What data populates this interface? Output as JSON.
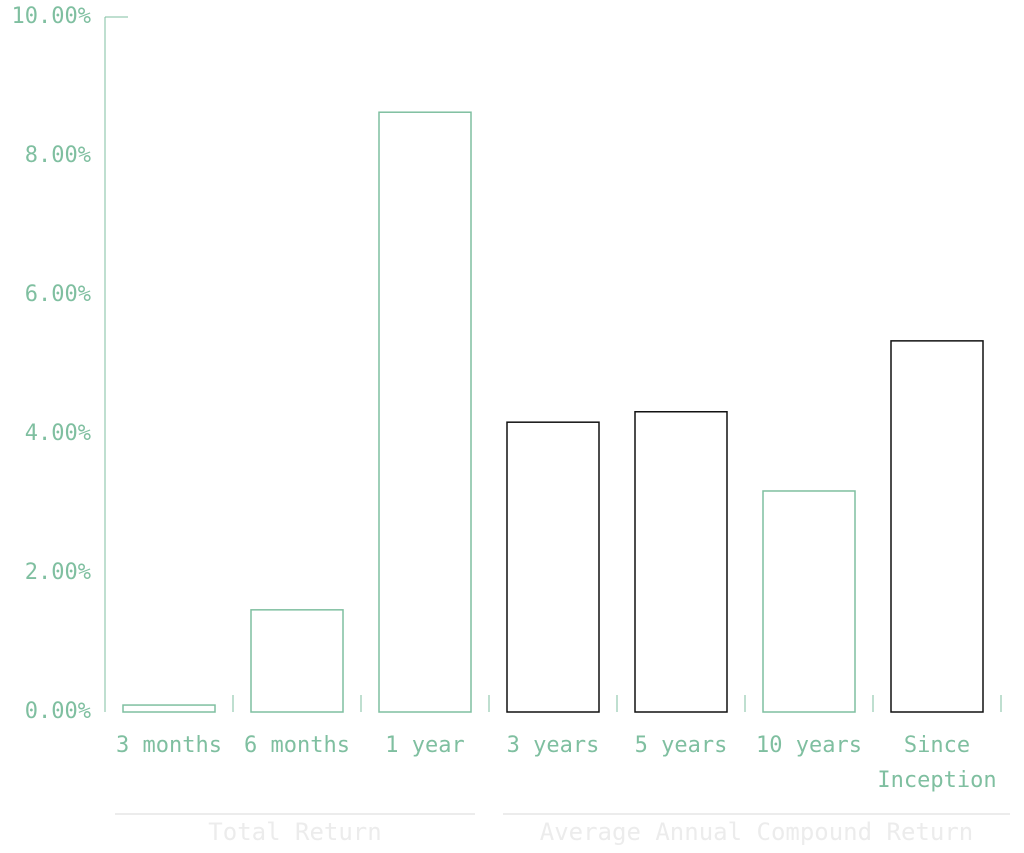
{
  "chart_data": {
    "type": "bar",
    "categories": [
      "3 months",
      "6 months",
      "1 year",
      "3 years",
      "5 years",
      "10 years",
      "Since Inception"
    ],
    "values": [
      0.1,
      1.47,
      8.63,
      4.17,
      4.32,
      3.18,
      5.34
    ],
    "colors": [
      "#7fbfa0",
      "#7fbfa0",
      "#7fbfa0",
      "#111111",
      "#111111",
      "#7fbfa0",
      "#111111"
    ],
    "ylim": [
      0,
      10
    ],
    "yticks": [
      {
        "value": 0,
        "label": "0.00%"
      },
      {
        "value": 2,
        "label": "2.00%"
      },
      {
        "value": 4,
        "label": "4.00%"
      },
      {
        "value": 6,
        "label": "6.00%"
      },
      {
        "value": 8,
        "label": "8.00%"
      },
      {
        "value": 10,
        "label": "10.00%"
      }
    ],
    "groups": [
      {
        "name": "Total Return",
        "count": 3
      },
      {
        "name": "Average Annual Compound Return",
        "count": 4
      }
    ]
  }
}
